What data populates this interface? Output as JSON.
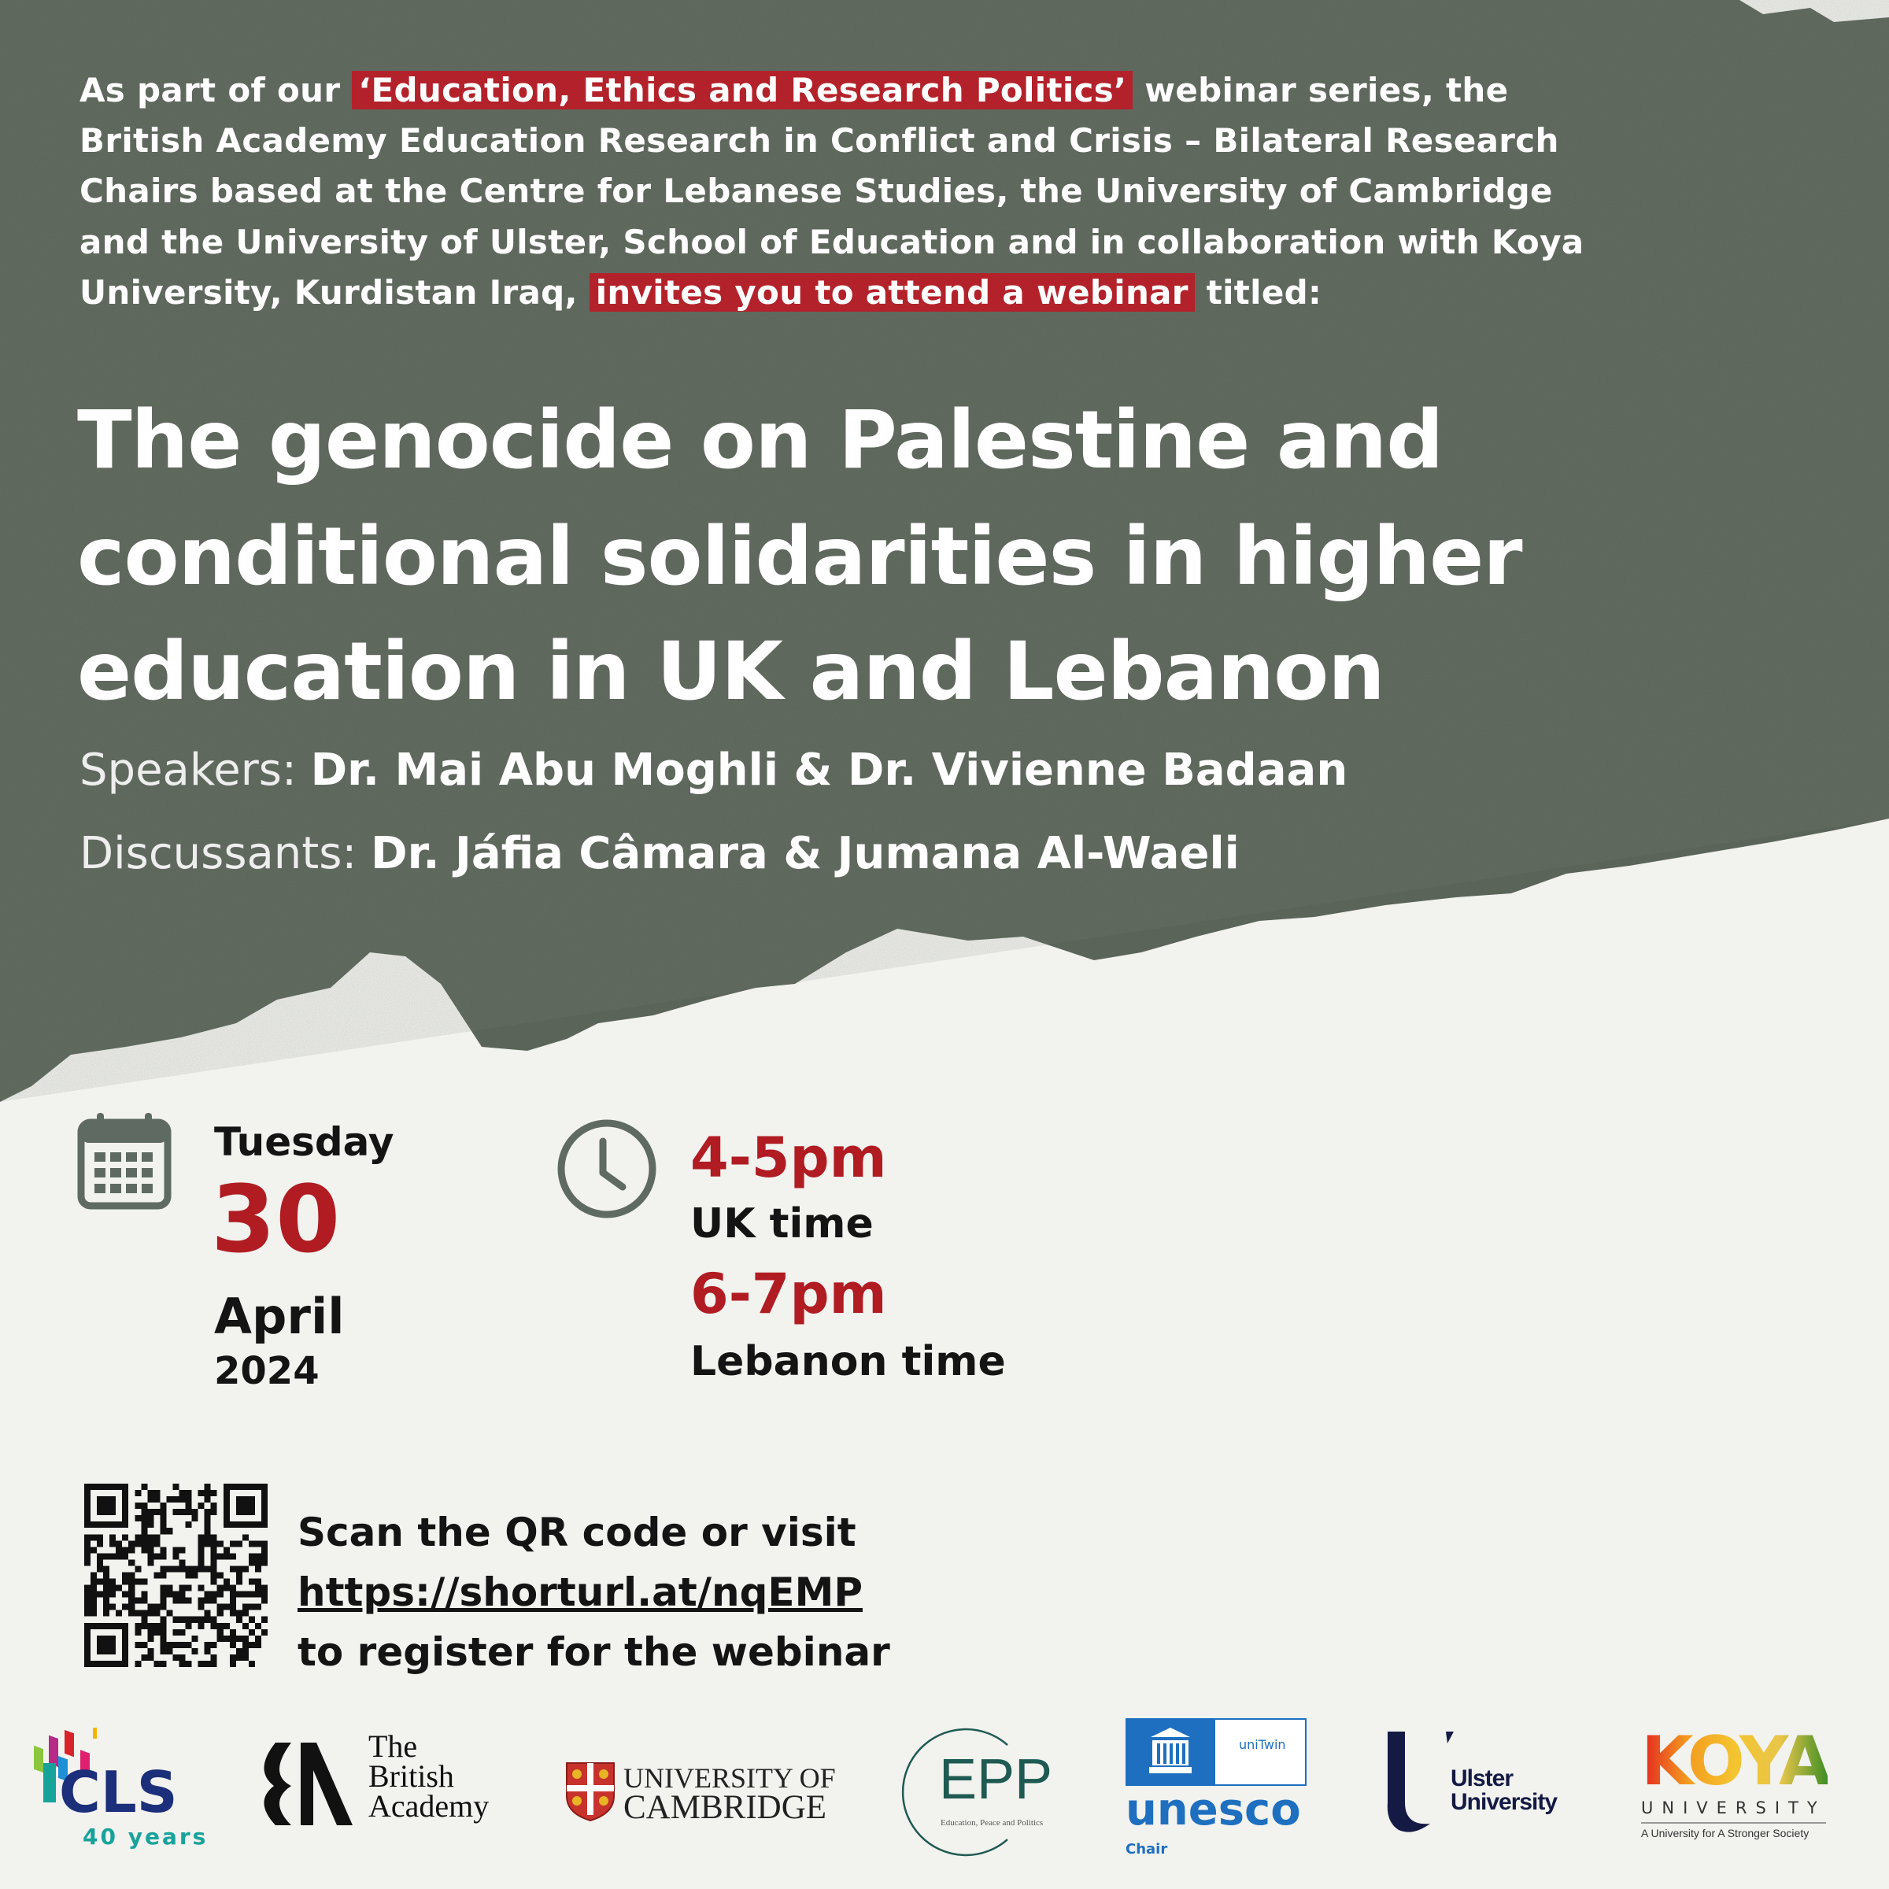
{
  "intro": {
    "line1_pre": "As part of our ",
    "line1_highlight": "‘Education, Ethics and Research Politics’",
    "line1_post": " webinar series, the",
    "line2": "British Academy Education Research in Conflict and Crisis – Bilateral Research",
    "line3": "Chairs based at the Centre for Lebanese Studies, the University of Cambridge",
    "line4": "and the University of Ulster, School of Education and in collaboration with Koya",
    "line5_pre": "University, Kurdistan Iraq, ",
    "line5_highlight": "invites you to attend a webinar",
    "line5_post": " titled:"
  },
  "title": {
    "line1": "The genocide on Palestine and",
    "line2": "conditional solidarities in higher",
    "line3": "education in UK and Lebanon"
  },
  "speakers": {
    "label": "Speakers: ",
    "names": "Dr. Mai Abu Moghli & Dr. Vivienne Badaan"
  },
  "discussants": {
    "label": "Discussants: ",
    "names": "Dr. Jáfia Câmara & Jumana Al-Waeli"
  },
  "date": {
    "weekday": "Tuesday",
    "day": "30",
    "month": "April",
    "year": "2024",
    "icon": "calendar-icon"
  },
  "time": {
    "icon": "clock-icon",
    "uk_time": "4-5pm",
    "uk_label": "UK time",
    "lb_time": "6-7pm",
    "lb_label": "Lebanon time"
  },
  "register": {
    "line1": "Scan the QR code or visit",
    "url": "https://shorturl.at/nqEMP",
    "line3": "to register for the webinar"
  },
  "logos": {
    "cls": {
      "name": "CLS",
      "sub": "40 years"
    },
    "british_academy": {
      "line1": "The",
      "line2": "British",
      "line3": "Academy"
    },
    "cambridge": {
      "line1": "UNIVERSITY OF",
      "line2": "CAMBRIDGE"
    },
    "epp": {
      "name": "EPP",
      "sub": "Education, Peace and Politics"
    },
    "unesco": {
      "name": "unesco",
      "sub": "Chair",
      "unitwin": "uniTwin"
    },
    "ulster": {
      "line1": "Ulster",
      "line2": "University"
    },
    "koya": {
      "name": "KOYA",
      "line2": "UNIVERSITY",
      "tagline": "A University for A Stronger Society"
    }
  },
  "colors": {
    "accent_red": "#b01c22",
    "highlight_red": "#b3222a",
    "backdrop_gray": "#5b6459",
    "paper": "#f2f2ef",
    "icon_gray": "#5f6a62"
  }
}
